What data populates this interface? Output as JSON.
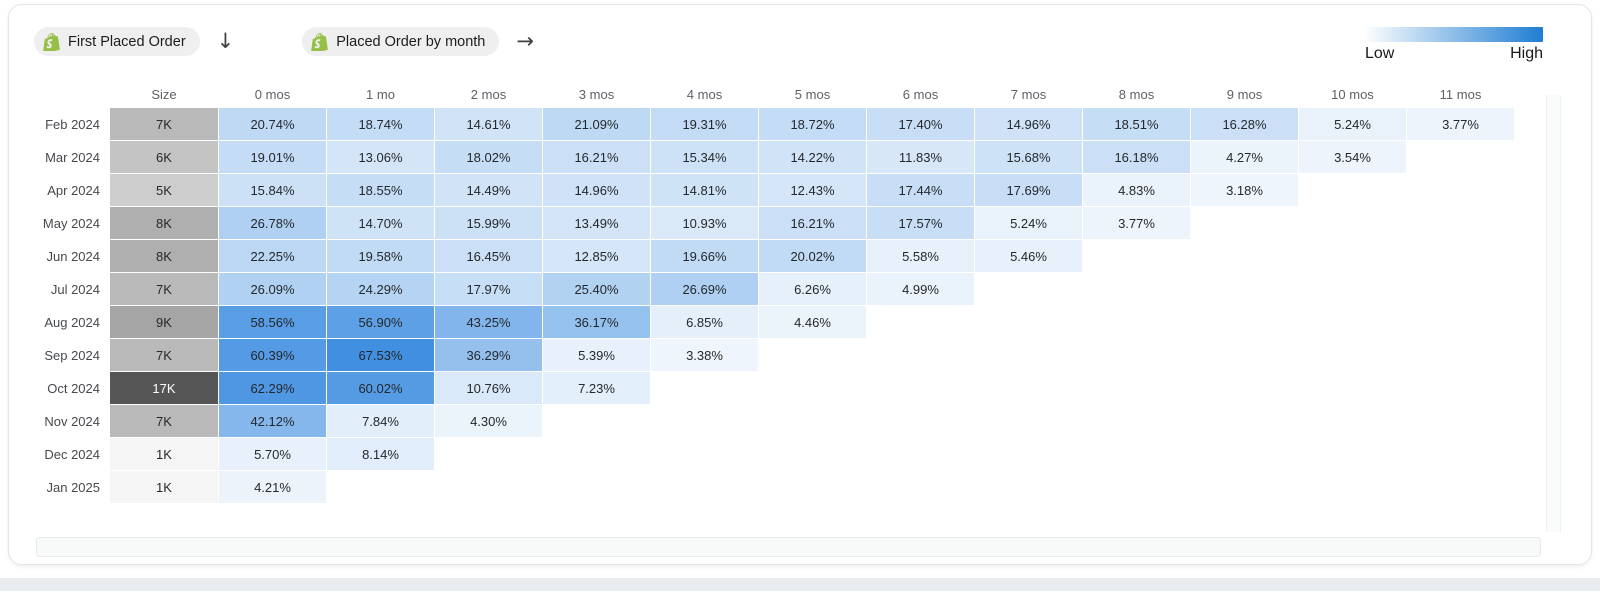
{
  "header": {
    "source_pill": {
      "label": "First Placed Order",
      "icon": "shopify-bag-icon"
    },
    "down_arrow": "↓",
    "target_pill": {
      "label": "Placed Order by month",
      "icon": "shopify-bag-icon"
    },
    "right_arrow": "→",
    "legend": {
      "low_label": "Low",
      "high_label": "High"
    }
  },
  "table": {
    "size_header": "Size"
  },
  "colors": {
    "heat_low": "#f7fafd",
    "heat_high": "#3a8be0",
    "legend_gradient_start": "#fdfefe",
    "legend_gradient_end": "#1f7dd3",
    "size_low": "#f5f5f5",
    "size_high": "#555555",
    "shopify_green": "#95BF47"
  },
  "chart_data": {
    "type": "heatmap",
    "x_categories": [
      "0 mos",
      "1 mo",
      "2 mos",
      "3 mos",
      "4 mos",
      "5 mos",
      "6 mos",
      "7 mos",
      "8 mos",
      "9 mos",
      "10 mos",
      "11 mos"
    ],
    "y_categories": [
      "Feb 2024",
      "Mar 2024",
      "Apr 2024",
      "May 2024",
      "Jun 2024",
      "Jul 2024",
      "Aug 2024",
      "Sep 2024",
      "Oct 2024",
      "Nov 2024",
      "Dec 2024",
      "Jan 2025"
    ],
    "cohort_sizes": [
      "7K",
      "6K",
      "5K",
      "8K",
      "8K",
      "7K",
      "9K",
      "7K",
      "17K",
      "7K",
      "1K",
      "1K"
    ],
    "cohort_size_values": [
      7,
      6,
      5,
      8,
      8,
      7,
      9,
      7,
      17,
      7,
      1,
      1
    ],
    "values_percent": [
      [
        20.74,
        18.74,
        14.61,
        21.09,
        19.31,
        18.72,
        17.4,
        14.96,
        18.51,
        16.28,
        5.24,
        3.77
      ],
      [
        19.01,
        13.06,
        18.02,
        16.21,
        15.34,
        14.22,
        11.83,
        15.68,
        16.18,
        4.27,
        3.54
      ],
      [
        15.84,
        18.55,
        14.49,
        14.96,
        14.81,
        12.43,
        17.44,
        17.69,
        4.83,
        3.18
      ],
      [
        26.78,
        14.7,
        15.99,
        13.49,
        10.93,
        16.21,
        17.57,
        5.24,
        3.77
      ],
      [
        22.25,
        19.58,
        16.45,
        12.85,
        19.66,
        20.02,
        5.58,
        5.46
      ],
      [
        26.09,
        24.29,
        17.97,
        25.4,
        26.69,
        6.26,
        4.99
      ],
      [
        58.56,
        56.9,
        43.25,
        36.17,
        6.85,
        4.46
      ],
      [
        60.39,
        67.53,
        36.29,
        5.39,
        3.38
      ],
      [
        62.29,
        60.02,
        10.76,
        7.23
      ],
      [
        42.12,
        7.84,
        4.3
      ],
      [
        5.7,
        8.14
      ],
      [
        4.21
      ]
    ],
    "value_format": "percent",
    "color_scale": {
      "min": 0,
      "max": 70,
      "low_label": "Low",
      "high_label": "High"
    }
  }
}
